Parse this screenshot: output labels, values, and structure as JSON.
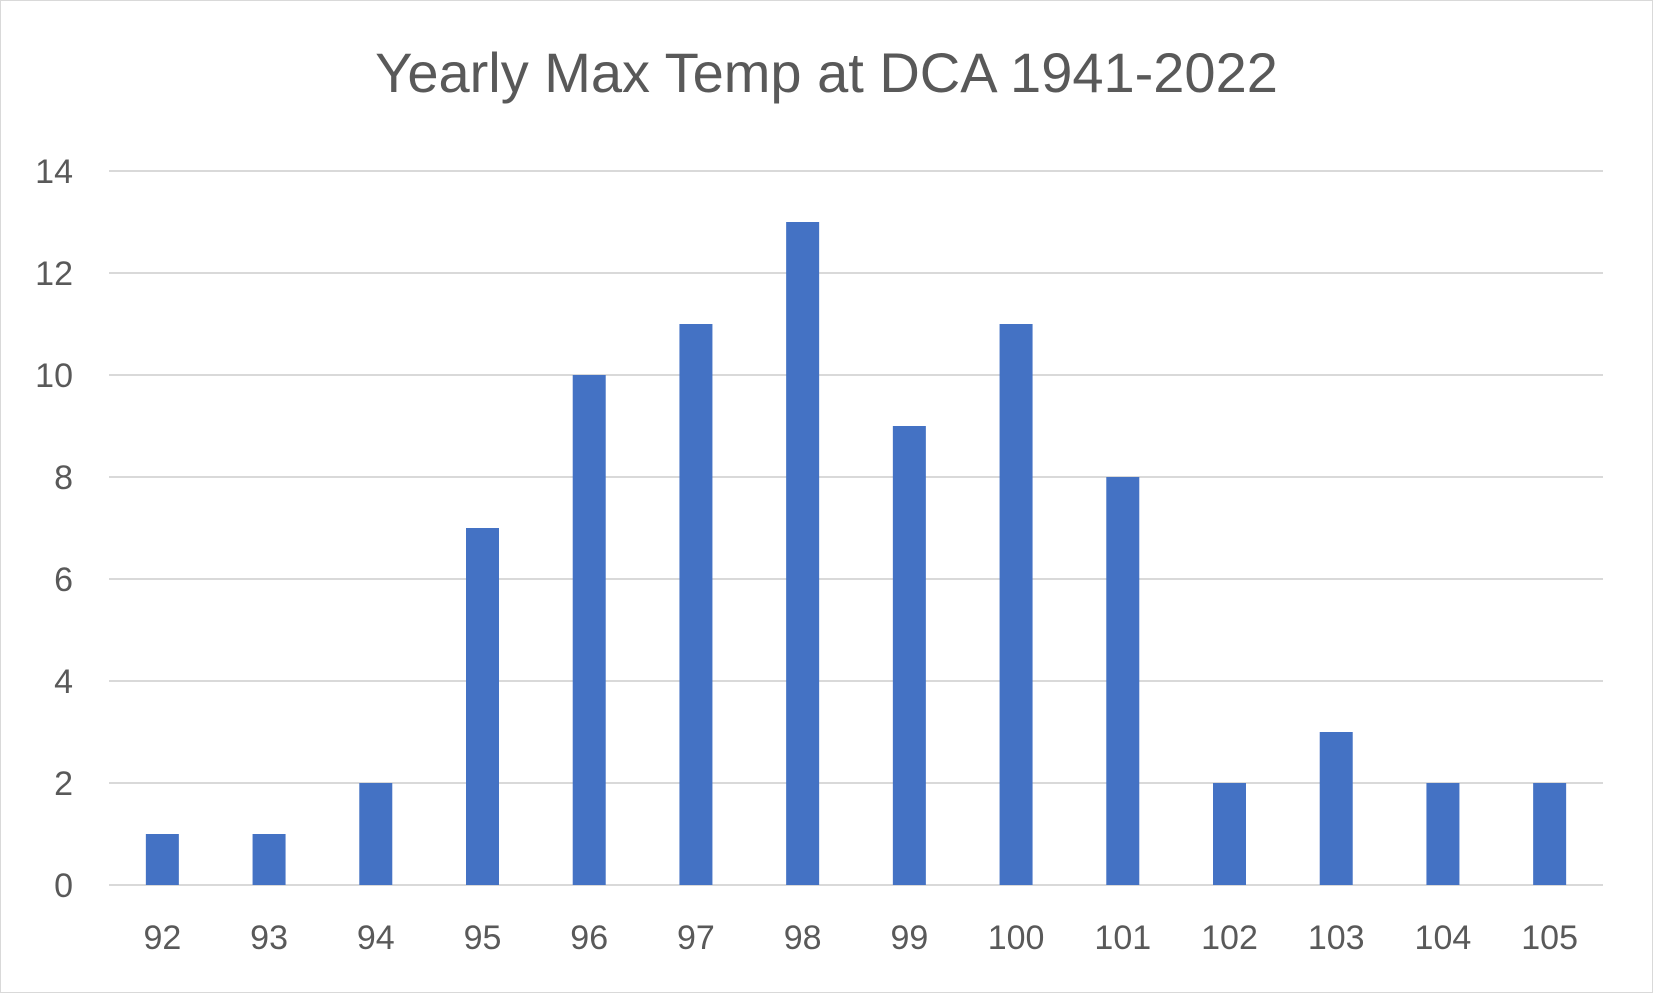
{
  "chart_data": {
    "type": "bar",
    "title": "Yearly Max Temp at DCA 1941-2022",
    "categories": [
      "92",
      "93",
      "94",
      "95",
      "96",
      "97",
      "98",
      "99",
      "100",
      "101",
      "102",
      "103",
      "104",
      "105"
    ],
    "values": [
      1,
      1,
      2,
      7,
      10,
      11,
      13,
      9,
      11,
      8,
      2,
      3,
      2,
      2
    ],
    "ylim": [
      0,
      14
    ],
    "yticks": [
      "0",
      "2",
      "4",
      "6",
      "8",
      "10",
      "12",
      "14"
    ],
    "grid": true,
    "legend": "none",
    "colors": {
      "bar": "#4472c4",
      "grid": "#d9d9d9",
      "text": "#595959"
    }
  }
}
